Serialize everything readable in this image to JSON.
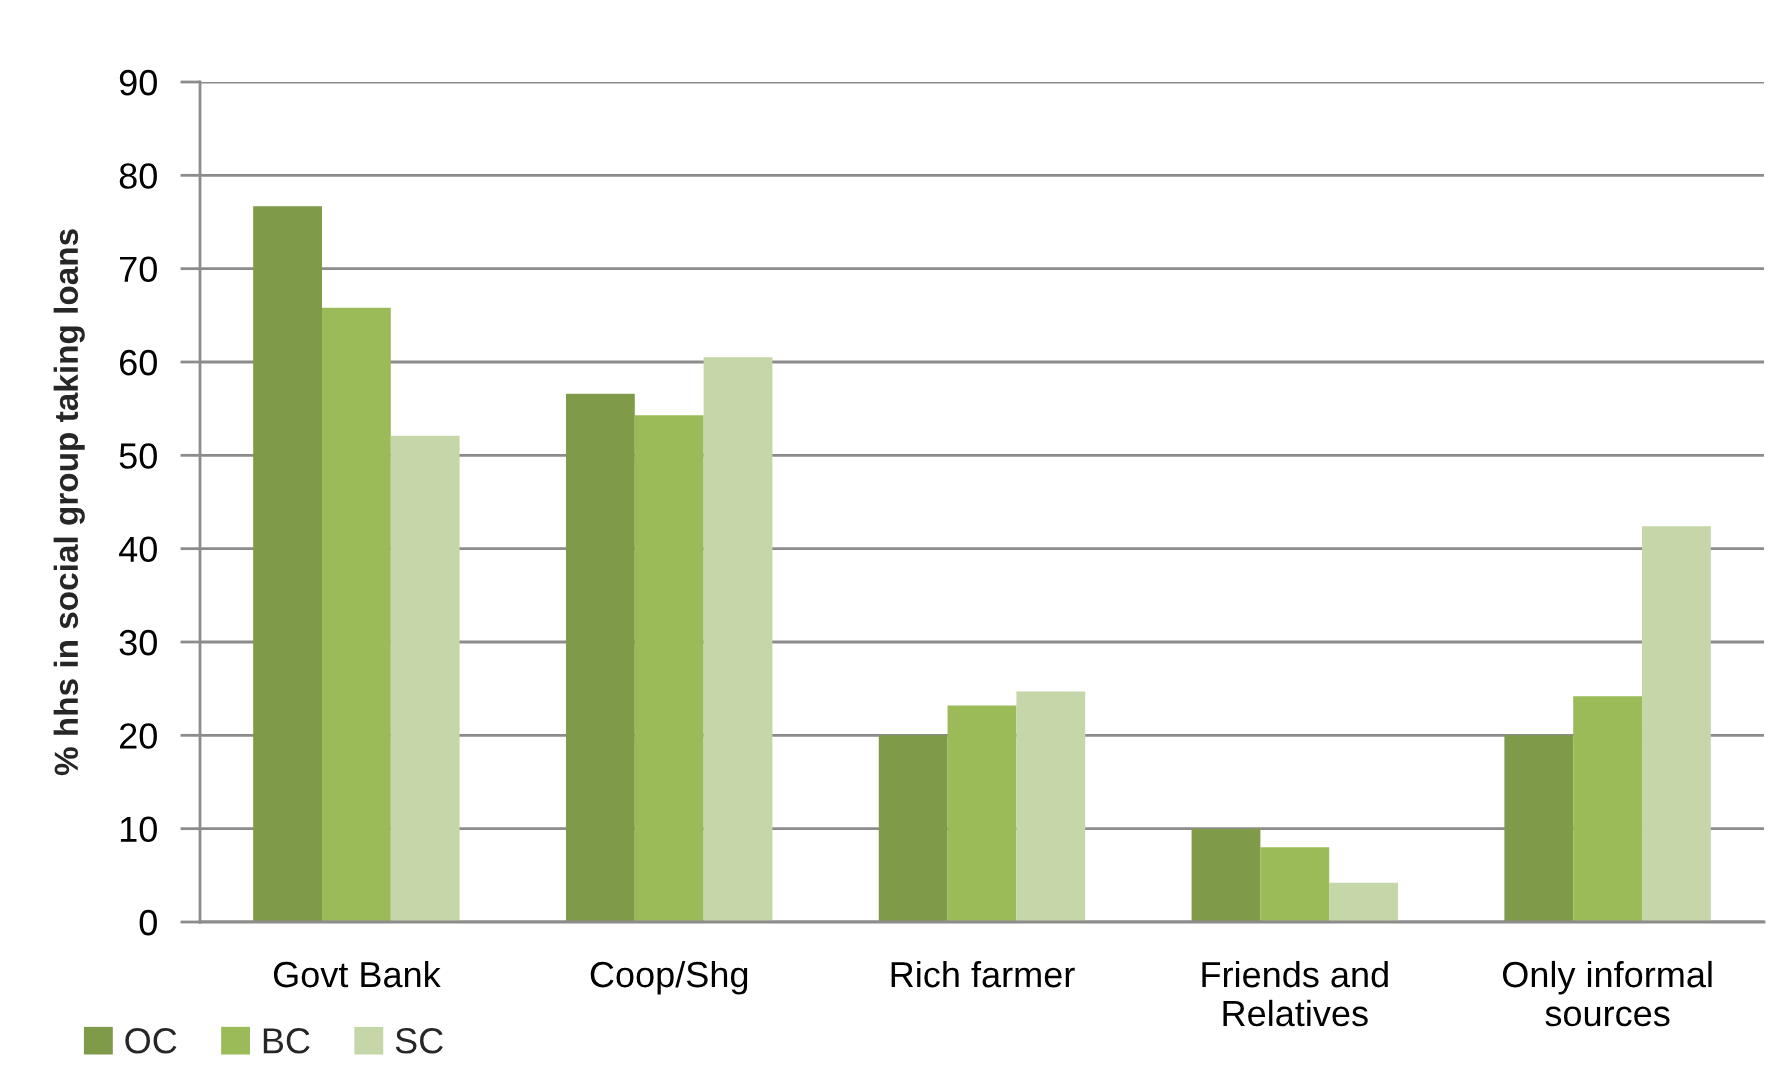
{
  "chart_data": {
    "type": "bar",
    "ylabel": "% hhs in social group taking loans",
    "categories": [
      "Govt Bank",
      "Coop/Shg",
      "Rich farmer",
      "Friends and Relatives",
      "Only informal sources"
    ],
    "series": [
      {
        "name": "OC",
        "color": "#7f9a48",
        "values": [
          76.7,
          56.6,
          20,
          10,
          20
        ]
      },
      {
        "name": "BC",
        "color": "#9bbb59",
        "values": [
          65.8,
          54.3,
          23.2,
          8,
          24.2
        ]
      },
      {
        "name": "SC",
        "color": "#c5d6a9",
        "values": [
          52.1,
          60.5,
          24.7,
          4.2,
          42.4
        ]
      }
    ],
    "ylim": [
      0,
      90
    ],
    "yticks": [
      0,
      10,
      20,
      30,
      40,
      50,
      60,
      70,
      80,
      90
    ],
    "grid": "y",
    "legend": "bottom"
  }
}
